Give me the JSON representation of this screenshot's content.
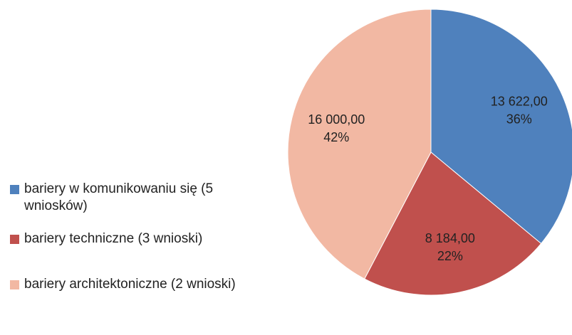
{
  "chart_data": {
    "type": "pie",
    "categories": [
      "bariery w komunikowaniu się (5 wniosków)",
      "bariery techniczne (3 wnioski)",
      "bariery architektoniczne (2 wnioski)"
    ],
    "values": [
      13622,
      8184,
      16000
    ],
    "value_labels": [
      "13 622,00",
      "8 184,00",
      "16 000,00"
    ],
    "percent_labels": [
      "36%",
      "22%",
      "42%"
    ],
    "colors": [
      "#4f81bd",
      "#c0504d",
      "#f2b8a3"
    ],
    "legend": "left"
  }
}
